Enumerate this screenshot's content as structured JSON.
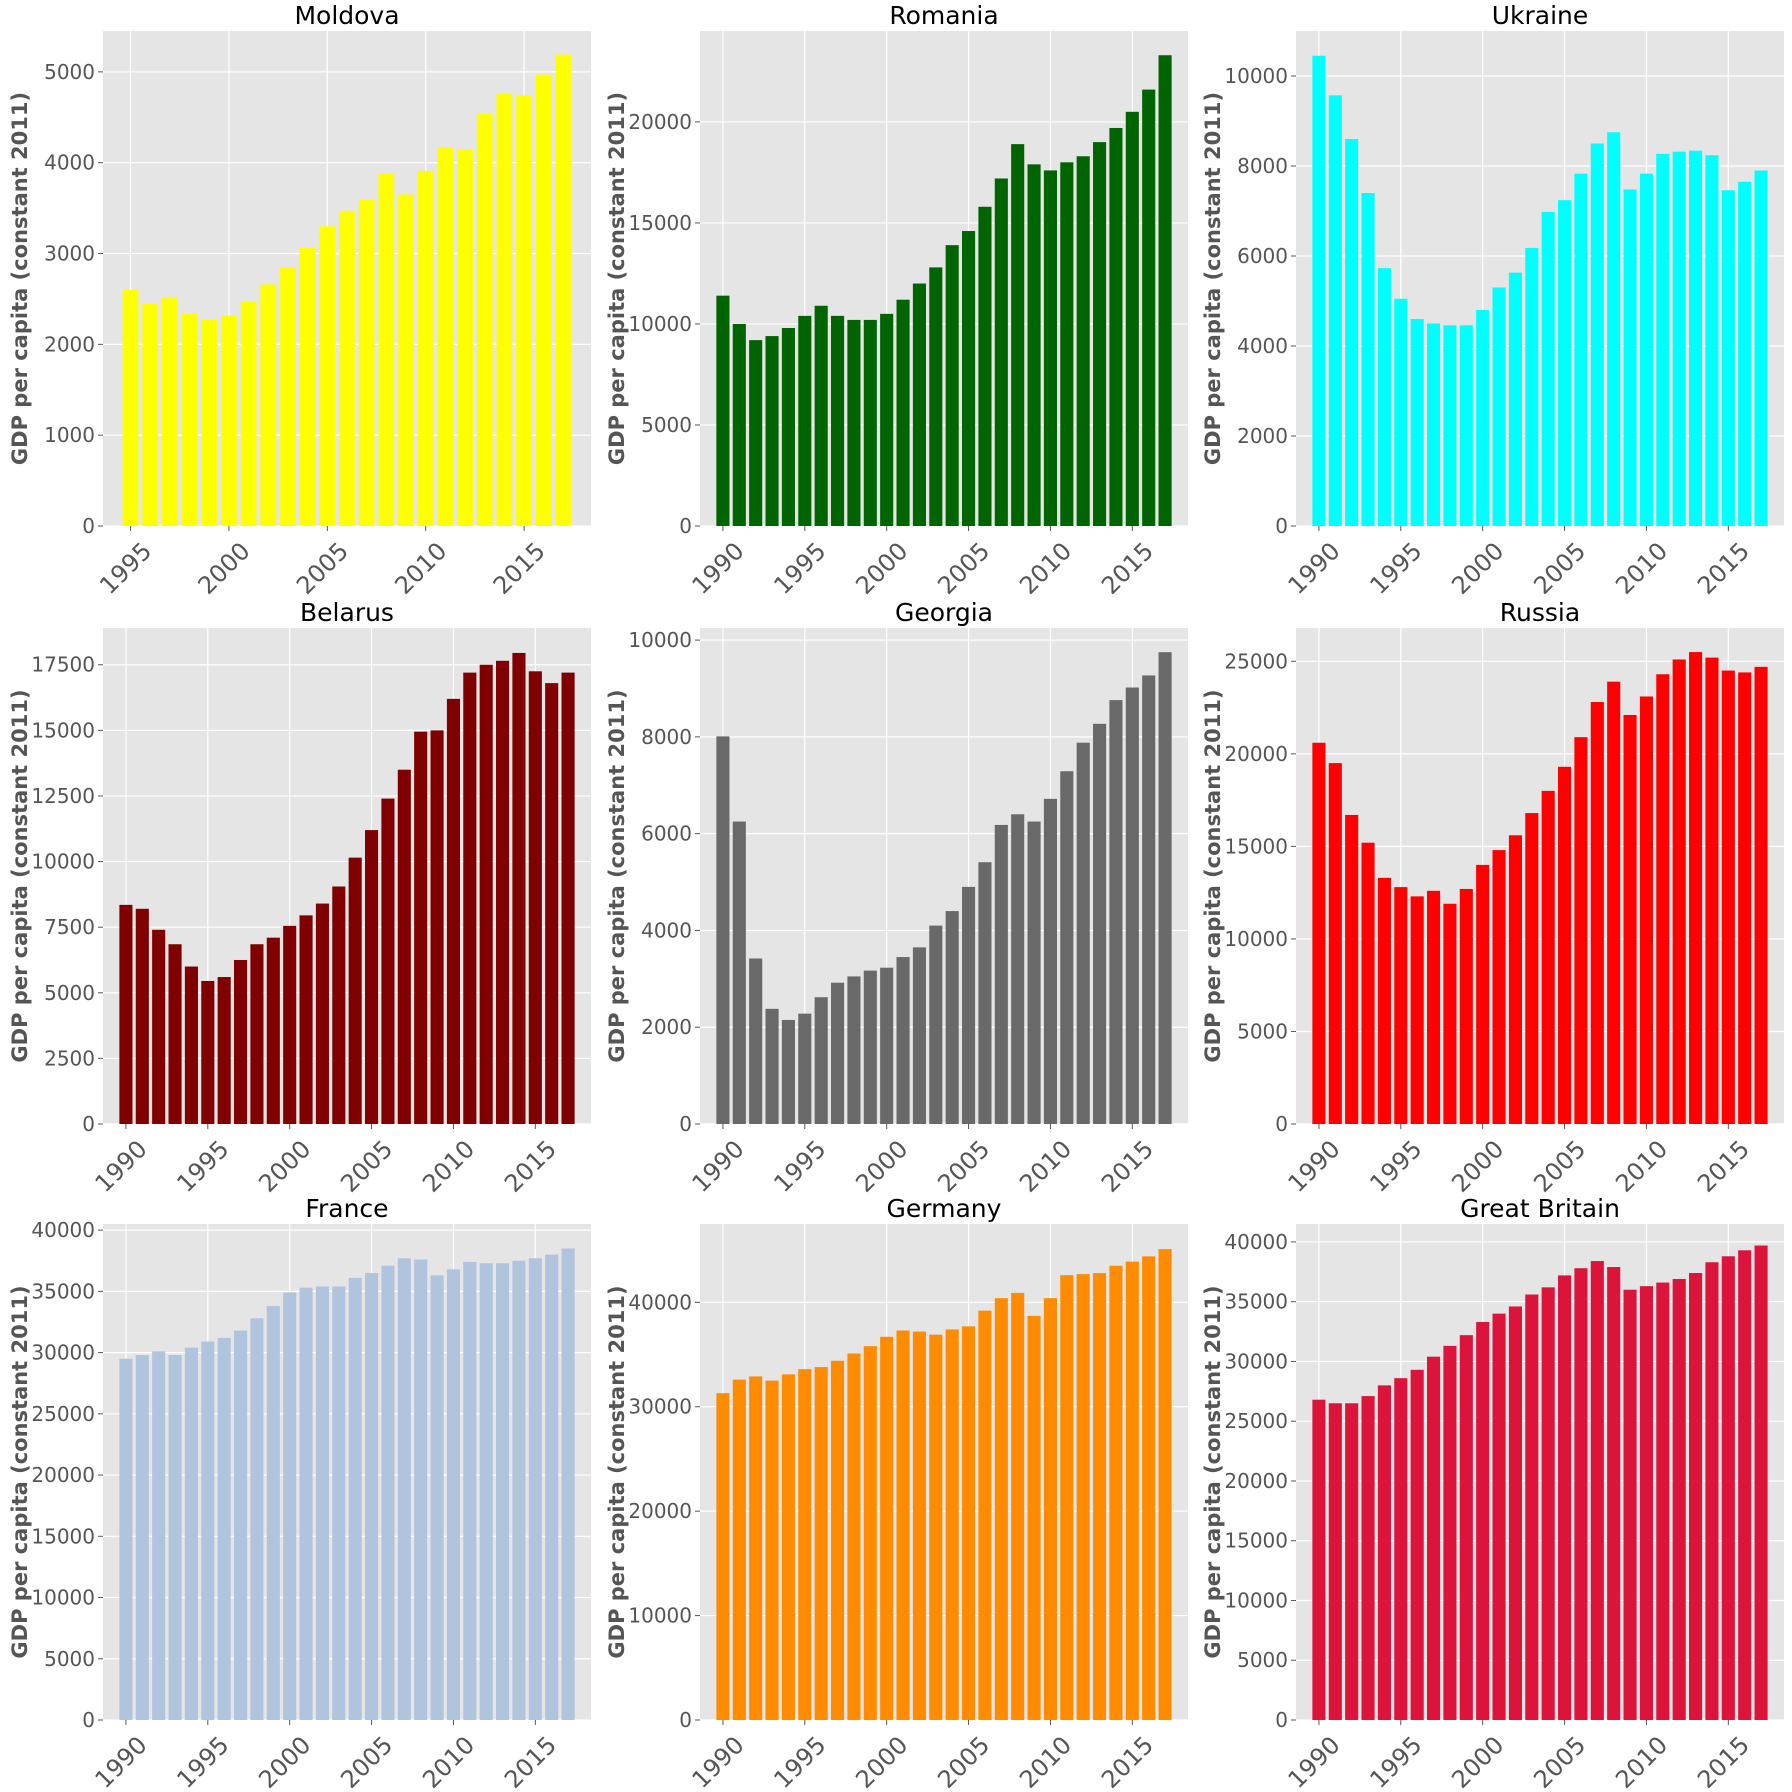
{
  "chart_data": [
    {
      "type": "bar",
      "title": "Moldova",
      "ylabel": "GDP per capita (constant 2011)",
      "color": "#ffff00",
      "start_year": 1995,
      "ylim": [
        0,
        5450
      ],
      "yticks": [
        0,
        1000,
        2000,
        3000,
        4000,
        5000
      ],
      "xlim": [
        1993.6,
        2018.4
      ],
      "xticks": [
        1995,
        2000,
        2005,
        2010,
        2015
      ],
      "x": [
        1995,
        1996,
        1997,
        1998,
        1999,
        2000,
        2001,
        2002,
        2003,
        2004,
        2005,
        2006,
        2007,
        2008,
        2009,
        2010,
        2011,
        2012,
        2013,
        2014,
        2015,
        2016,
        2017
      ],
      "values": [
        2600,
        2450,
        2510,
        2340,
        2270,
        2320,
        2470,
        2660,
        2850,
        3070,
        3300,
        3470,
        3590,
        3880,
        3650,
        3910,
        4170,
        4150,
        4540,
        4760,
        4740,
        4970,
        5190
      ]
    },
    {
      "type": "bar",
      "title": "Romania",
      "ylabel": "GDP per capita (constant 2011)",
      "color": "#006400",
      "start_year": 1990,
      "ylim": [
        0,
        24500
      ],
      "yticks": [
        0,
        5000,
        10000,
        15000,
        20000
      ],
      "xlim": [
        1988.6,
        2018.4
      ],
      "xticks": [
        1990,
        1995,
        2000,
        2005,
        2010,
        2015
      ],
      "x": [
        1990,
        1991,
        1992,
        1993,
        1994,
        1995,
        1996,
        1997,
        1998,
        1999,
        2000,
        2001,
        2002,
        2003,
        2004,
        2005,
        2006,
        2007,
        2008,
        2009,
        2010,
        2011,
        2012,
        2013,
        2014,
        2015,
        2016,
        2017
      ],
      "values": [
        11400,
        10000,
        9200,
        9400,
        9800,
        10400,
        10900,
        10400,
        10200,
        10200,
        10500,
        11200,
        12000,
        12800,
        13900,
        14600,
        15800,
        17200,
        18900,
        17900,
        17600,
        18000,
        18300,
        19000,
        19700,
        20500,
        21600,
        23300
      ]
    },
    {
      "type": "bar",
      "title": "Ukraine",
      "ylabel": "GDP per capita (constant 2011)",
      "color": "#00ffff",
      "start_year": 1990,
      "ylim": [
        0,
        11000
      ],
      "yticks": [
        0,
        2000,
        4000,
        6000,
        8000,
        10000
      ],
      "xlim": [
        1988.6,
        2018.4
      ],
      "xticks": [
        1990,
        1995,
        2000,
        2005,
        2010,
        2015
      ],
      "x": [
        1990,
        1991,
        1992,
        1993,
        1994,
        1995,
        1996,
        1997,
        1998,
        1999,
        2000,
        2001,
        2002,
        2003,
        2004,
        2005,
        2006,
        2007,
        2008,
        2009,
        2010,
        2011,
        2012,
        2013,
        2014,
        2015,
        2016,
        2017
      ],
      "values": [
        10450,
        9570,
        8600,
        7400,
        5730,
        5050,
        4600,
        4500,
        4460,
        4460,
        4800,
        5300,
        5630,
        6180,
        6980,
        7240,
        7830,
        8500,
        8750,
        7480,
        7830,
        8270,
        8320,
        8340,
        8240,
        7460,
        7650,
        7900
      ]
    },
    {
      "type": "bar",
      "title": "Belarus",
      "ylabel": "GDP per capita (constant 2011)",
      "color": "#800000",
      "start_year": 1990,
      "ylim": [
        0,
        18900
      ],
      "yticks": [
        0,
        2500,
        5000,
        7500,
        10000,
        12500,
        15000,
        17500
      ],
      "xlim": [
        1988.6,
        2018.4
      ],
      "xticks": [
        1990,
        1995,
        2000,
        2005,
        2010,
        2015
      ],
      "x": [
        1990,
        1991,
        1992,
        1993,
        1994,
        1995,
        1996,
        1997,
        1998,
        1999,
        2000,
        2001,
        2002,
        2003,
        2004,
        2005,
        2006,
        2007,
        2008,
        2009,
        2010,
        2011,
        2012,
        2013,
        2014,
        2015,
        2016,
        2017
      ],
      "values": [
        8350,
        8200,
        7400,
        6850,
        6000,
        5450,
        5600,
        6250,
        6850,
        7100,
        7550,
        7950,
        8400,
        9050,
        10150,
        11200,
        12400,
        13500,
        14950,
        15000,
        16200,
        17200,
        17500,
        17650,
        17950,
        17250,
        16800,
        17200
      ]
    },
    {
      "type": "bar",
      "title": "Georgia",
      "ylabel": "GDP per capita (constant 2011)",
      "color": "#696969",
      "start_year": 1990,
      "ylim": [
        0,
        10250
      ],
      "yticks": [
        0,
        2000,
        4000,
        6000,
        8000,
        10000
      ],
      "xlim": [
        1988.6,
        2018.4
      ],
      "xticks": [
        1990,
        1995,
        2000,
        2005,
        2010,
        2015
      ],
      "x": [
        1990,
        1991,
        1992,
        1993,
        1994,
        1995,
        1996,
        1997,
        1998,
        1999,
        2000,
        2001,
        2002,
        2003,
        2004,
        2005,
        2006,
        2007,
        2008,
        2009,
        2010,
        2011,
        2012,
        2013,
        2014,
        2015,
        2016,
        2017
      ],
      "values": [
        8010,
        6250,
        3420,
        2380,
        2150,
        2280,
        2620,
        2920,
        3050,
        3170,
        3230,
        3450,
        3650,
        4100,
        4400,
        4900,
        5410,
        6180,
        6400,
        6250,
        6720,
        7290,
        7880,
        8270,
        8760,
        9020,
        9270,
        9750
      ]
    },
    {
      "type": "bar",
      "title": "Russia",
      "ylabel": "GDP per capita (constant 2011)",
      "color": "#ff0000",
      "start_year": 1990,
      "ylim": [
        0,
        26800
      ],
      "yticks": [
        0,
        5000,
        10000,
        15000,
        20000,
        25000
      ],
      "xlim": [
        1988.6,
        2018.4
      ],
      "xticks": [
        1990,
        1995,
        2000,
        2005,
        2010,
        2015
      ],
      "x": [
        1990,
        1991,
        1992,
        1993,
        1994,
        1995,
        1996,
        1997,
        1998,
        1999,
        2000,
        2001,
        2002,
        2003,
        2004,
        2005,
        2006,
        2007,
        2008,
        2009,
        2010,
        2011,
        2012,
        2013,
        2014,
        2015,
        2016,
        2017
      ],
      "values": [
        20600,
        19500,
        16700,
        15200,
        13300,
        12800,
        12300,
        12600,
        11900,
        12700,
        14000,
        14800,
        15600,
        16800,
        18000,
        19300,
        20900,
        22800,
        23900,
        22100,
        23100,
        24300,
        25100,
        25500,
        25200,
        24500,
        24400,
        24700
      ]
    },
    {
      "type": "bar",
      "title": "France",
      "ylabel": "GDP per capita (constant 2011)",
      "color": "#b0c4de",
      "start_year": 1990,
      "ylim": [
        0,
        40500
      ],
      "yticks": [
        0,
        5000,
        10000,
        15000,
        20000,
        25000,
        30000,
        35000,
        40000
      ],
      "xlim": [
        1988.6,
        2018.4
      ],
      "xticks": [
        1990,
        1995,
        2000,
        2005,
        2010,
        2015
      ],
      "x": [
        1990,
        1991,
        1992,
        1993,
        1994,
        1995,
        1996,
        1997,
        1998,
        1999,
        2000,
        2001,
        2002,
        2003,
        2004,
        2005,
        2006,
        2007,
        2008,
        2009,
        2010,
        2011,
        2012,
        2013,
        2014,
        2015,
        2016,
        2017
      ],
      "values": [
        29500,
        29800,
        30100,
        29800,
        30400,
        30900,
        31200,
        31800,
        32800,
        33800,
        34900,
        35300,
        35400,
        35400,
        36100,
        36500,
        37100,
        37700,
        37600,
        36300,
        36800,
        37400,
        37300,
        37300,
        37500,
        37700,
        38000,
        38500
      ]
    },
    {
      "type": "bar",
      "title": "Germany",
      "ylabel": "GDP per capita (constant 2011)",
      "color": "#ff8c00",
      "start_year": 1990,
      "ylim": [
        0,
        47500
      ],
      "yticks": [
        0,
        10000,
        20000,
        30000,
        40000
      ],
      "xlim": [
        1988.6,
        2018.4
      ],
      "xticks": [
        1990,
        1995,
        2000,
        2005,
        2010,
        2015
      ],
      "x": [
        1990,
        1991,
        1992,
        1993,
        1994,
        1995,
        1996,
        1997,
        1998,
        1999,
        2000,
        2001,
        2002,
        2003,
        2004,
        2005,
        2006,
        2007,
        2008,
        2009,
        2010,
        2011,
        2012,
        2013,
        2014,
        2015,
        2016,
        2017
      ],
      "values": [
        31300,
        32600,
        32900,
        32500,
        33100,
        33600,
        33800,
        34400,
        35100,
        35800,
        36700,
        37300,
        37200,
        36900,
        37400,
        37700,
        39200,
        40400,
        40900,
        38700,
        40400,
        42600,
        42700,
        42800,
        43500,
        43900,
        44400,
        45100
      ]
    },
    {
      "type": "bar",
      "title": "Great Britain",
      "ylabel": "GDP per capita (constant 2011)",
      "color": "#dc143c",
      "start_year": 1990,
      "ylim": [
        0,
        41500
      ],
      "yticks": [
        0,
        5000,
        10000,
        15000,
        20000,
        25000,
        30000,
        35000,
        40000
      ],
      "xlim": [
        1988.6,
        2018.4
      ],
      "xticks": [
        1990,
        1995,
        2000,
        2005,
        2010,
        2015
      ],
      "x": [
        1990,
        1991,
        1992,
        1993,
        1994,
        1995,
        1996,
        1997,
        1998,
        1999,
        2000,
        2001,
        2002,
        2003,
        2004,
        2005,
        2006,
        2007,
        2008,
        2009,
        2010,
        2011,
        2012,
        2013,
        2014,
        2015,
        2016,
        2017
      ],
      "values": [
        26800,
        26500,
        26500,
        27100,
        28000,
        28600,
        29300,
        30400,
        31300,
        32200,
        33300,
        34000,
        34600,
        35600,
        36200,
        37200,
        37800,
        38400,
        37900,
        36000,
        36300,
        36600,
        36900,
        37400,
        38300,
        38800,
        39300,
        39700
      ]
    }
  ]
}
